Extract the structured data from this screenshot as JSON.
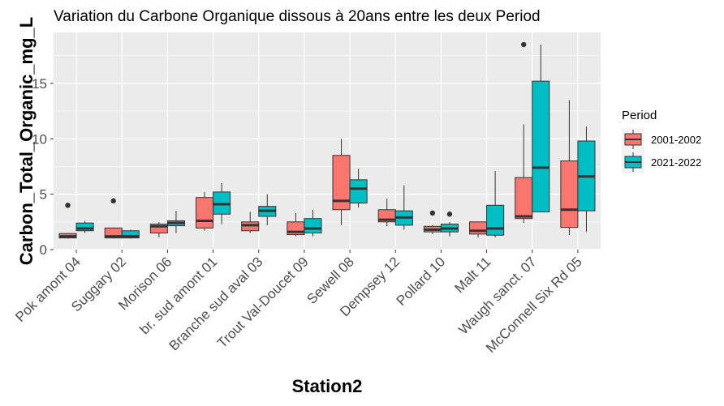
{
  "chart_data": {
    "type": "box",
    "title": "Variation  du Carbone Organique dissous à 20ans entre les deux Period",
    "xlabel": "Station2",
    "ylabel": "Carbon_Total_Organic_mg_L",
    "ylim": [
      0,
      19.6
    ],
    "yticks": [
      0,
      5,
      10,
      15
    ],
    "grid": true,
    "legend_position": "right",
    "legend": {
      "title": "Period",
      "entries": [
        "2001-2002",
        "2021-2022"
      ]
    },
    "series_colors": [
      "#F8766D",
      "#00BFC4"
    ],
    "categories": [
      "Pok amont 04",
      "Suggary 02",
      "Morison 06",
      "br. sud amont 01",
      "Branche sud aval 03",
      "Trout Val-Doucet 09",
      "Sewell 08",
      "Dempsey 12",
      "Pollard 10",
      "Malt 11",
      "Waugh sanct. 07",
      "McConnell Six Rd 05"
    ],
    "series": [
      {
        "name": "2001-2002",
        "boxes": [
          {
            "min": 1.0,
            "q1": 1.05,
            "median": 1.2,
            "q3": 1.45,
            "max": 1.5,
            "outliers": [
              4.0
            ]
          },
          {
            "min": 1.0,
            "q1": 1.05,
            "median": 1.2,
            "q3": 1.95,
            "max": 2.0,
            "outliers": [
              4.4
            ]
          },
          {
            "min": 1.1,
            "q1": 1.5,
            "median": 2.1,
            "q3": 2.3,
            "max": 2.5,
            "outliers": []
          },
          {
            "min": 1.7,
            "q1": 1.95,
            "median": 2.6,
            "q3": 4.7,
            "max": 5.2,
            "outliers": []
          },
          {
            "min": 1.5,
            "q1": 1.7,
            "median": 2.2,
            "q3": 2.5,
            "max": 3.4,
            "outliers": []
          },
          {
            "min": 1.2,
            "q1": 1.35,
            "median": 1.6,
            "q3": 2.5,
            "max": 3.3,
            "outliers": []
          },
          {
            "min": 2.2,
            "q1": 3.6,
            "median": 4.4,
            "q3": 8.5,
            "max": 10.0,
            "outliers": []
          },
          {
            "min": 2.1,
            "q1": 2.5,
            "median": 2.7,
            "q3": 3.6,
            "max": 4.6,
            "outliers": []
          },
          {
            "min": 1.4,
            "q1": 1.6,
            "median": 1.8,
            "q3": 2.1,
            "max": 2.2,
            "outliers": [
              3.3
            ]
          },
          {
            "min": 1.1,
            "q1": 1.4,
            "median": 1.7,
            "q3": 2.5,
            "max": 2.5,
            "outliers": []
          },
          {
            "min": 2.4,
            "q1": 2.8,
            "median": 3.0,
            "q3": 6.5,
            "max": 11.3,
            "outliers": [
              18.5
            ]
          },
          {
            "min": 1.3,
            "q1": 2.0,
            "median": 3.6,
            "q3": 8.0,
            "max": 13.5,
            "outliers": []
          }
        ]
      },
      {
        "name": "2021-2022",
        "boxes": [
          {
            "min": 1.5,
            "q1": 1.7,
            "median": 1.9,
            "q3": 2.4,
            "max": 2.6,
            "outliers": []
          },
          {
            "min": 1.0,
            "q1": 1.05,
            "median": 1.2,
            "q3": 1.7,
            "max": 1.8,
            "outliers": []
          },
          {
            "min": 1.5,
            "q1": 2.15,
            "median": 2.4,
            "q3": 2.6,
            "max": 3.5,
            "outliers": []
          },
          {
            "min": 2.3,
            "q1": 3.2,
            "median": 4.1,
            "q3": 5.2,
            "max": 6.0,
            "outliers": []
          },
          {
            "min": 2.2,
            "q1": 3.0,
            "median": 3.5,
            "q3": 3.9,
            "max": 5.0,
            "outliers": []
          },
          {
            "min": 1.2,
            "q1": 1.5,
            "median": 1.9,
            "q3": 2.8,
            "max": 3.6,
            "outliers": []
          },
          {
            "min": 3.8,
            "q1": 4.2,
            "median": 5.5,
            "q3": 6.3,
            "max": 7.3,
            "outliers": []
          },
          {
            "min": 1.8,
            "q1": 2.2,
            "median": 2.9,
            "q3": 3.5,
            "max": 5.8,
            "outliers": []
          },
          {
            "min": 1.2,
            "q1": 1.6,
            "median": 1.9,
            "q3": 2.3,
            "max": 2.5,
            "outliers": [
              3.2
            ]
          },
          {
            "min": 1.1,
            "q1": 1.3,
            "median": 1.9,
            "q3": 4.0,
            "max": 7.1,
            "outliers": []
          },
          {
            "min": 3.4,
            "q1": 3.4,
            "median": 7.4,
            "q3": 15.2,
            "max": 18.5,
            "outliers": []
          },
          {
            "min": 1.6,
            "q1": 3.5,
            "median": 6.6,
            "q3": 9.8,
            "max": 11.1,
            "outliers": []
          }
        ]
      }
    ]
  }
}
